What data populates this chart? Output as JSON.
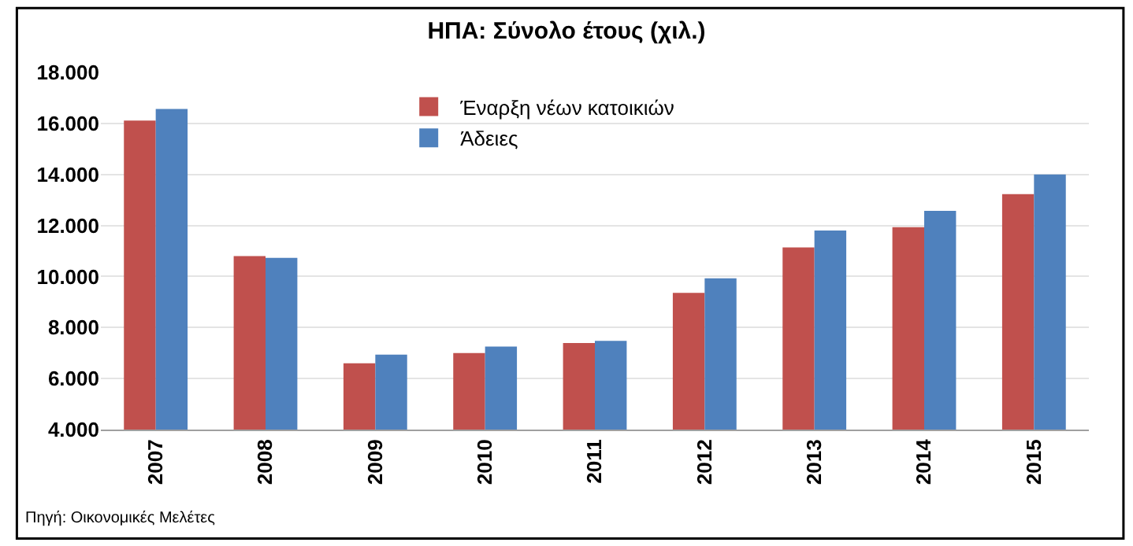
{
  "chart_data": {
    "type": "bar",
    "title": "ΗΠΑ: Σύνολο έτους (χιλ.)",
    "categories": [
      "2007",
      "2008",
      "2009",
      "2010",
      "2011",
      "2012",
      "2013",
      "2014",
      "2015"
    ],
    "series": [
      {
        "name": "Έναρξη νέων κατοικιών",
        "color": "#c0504d",
        "values": [
          16110,
          10800,
          6600,
          7000,
          7390,
          9360,
          11140,
          11930,
          13230
        ]
      },
      {
        "name": "Άδειες",
        "color": "#4f81bd",
        "values": [
          16570,
          10730,
          6940,
          7250,
          7480,
          9930,
          11800,
          12570,
          14000
        ]
      }
    ],
    "ylim": [
      4000,
      18000
    ],
    "yticks": [
      {
        "value": 4000,
        "label": "4.000"
      },
      {
        "value": 6000,
        "label": "6.000"
      },
      {
        "value": 8000,
        "label": "8.000"
      },
      {
        "value": 10000,
        "label": "10.000"
      },
      {
        "value": 12000,
        "label": "12.000"
      },
      {
        "value": 14000,
        "label": "14.000"
      },
      {
        "value": 16000,
        "label": "16.000"
      },
      {
        "value": 18000,
        "label": "18.000"
      }
    ],
    "grid": "y",
    "legend": "top",
    "annotations": [
      "Πηγή: Οικονομικές Μελέτες"
    ]
  }
}
